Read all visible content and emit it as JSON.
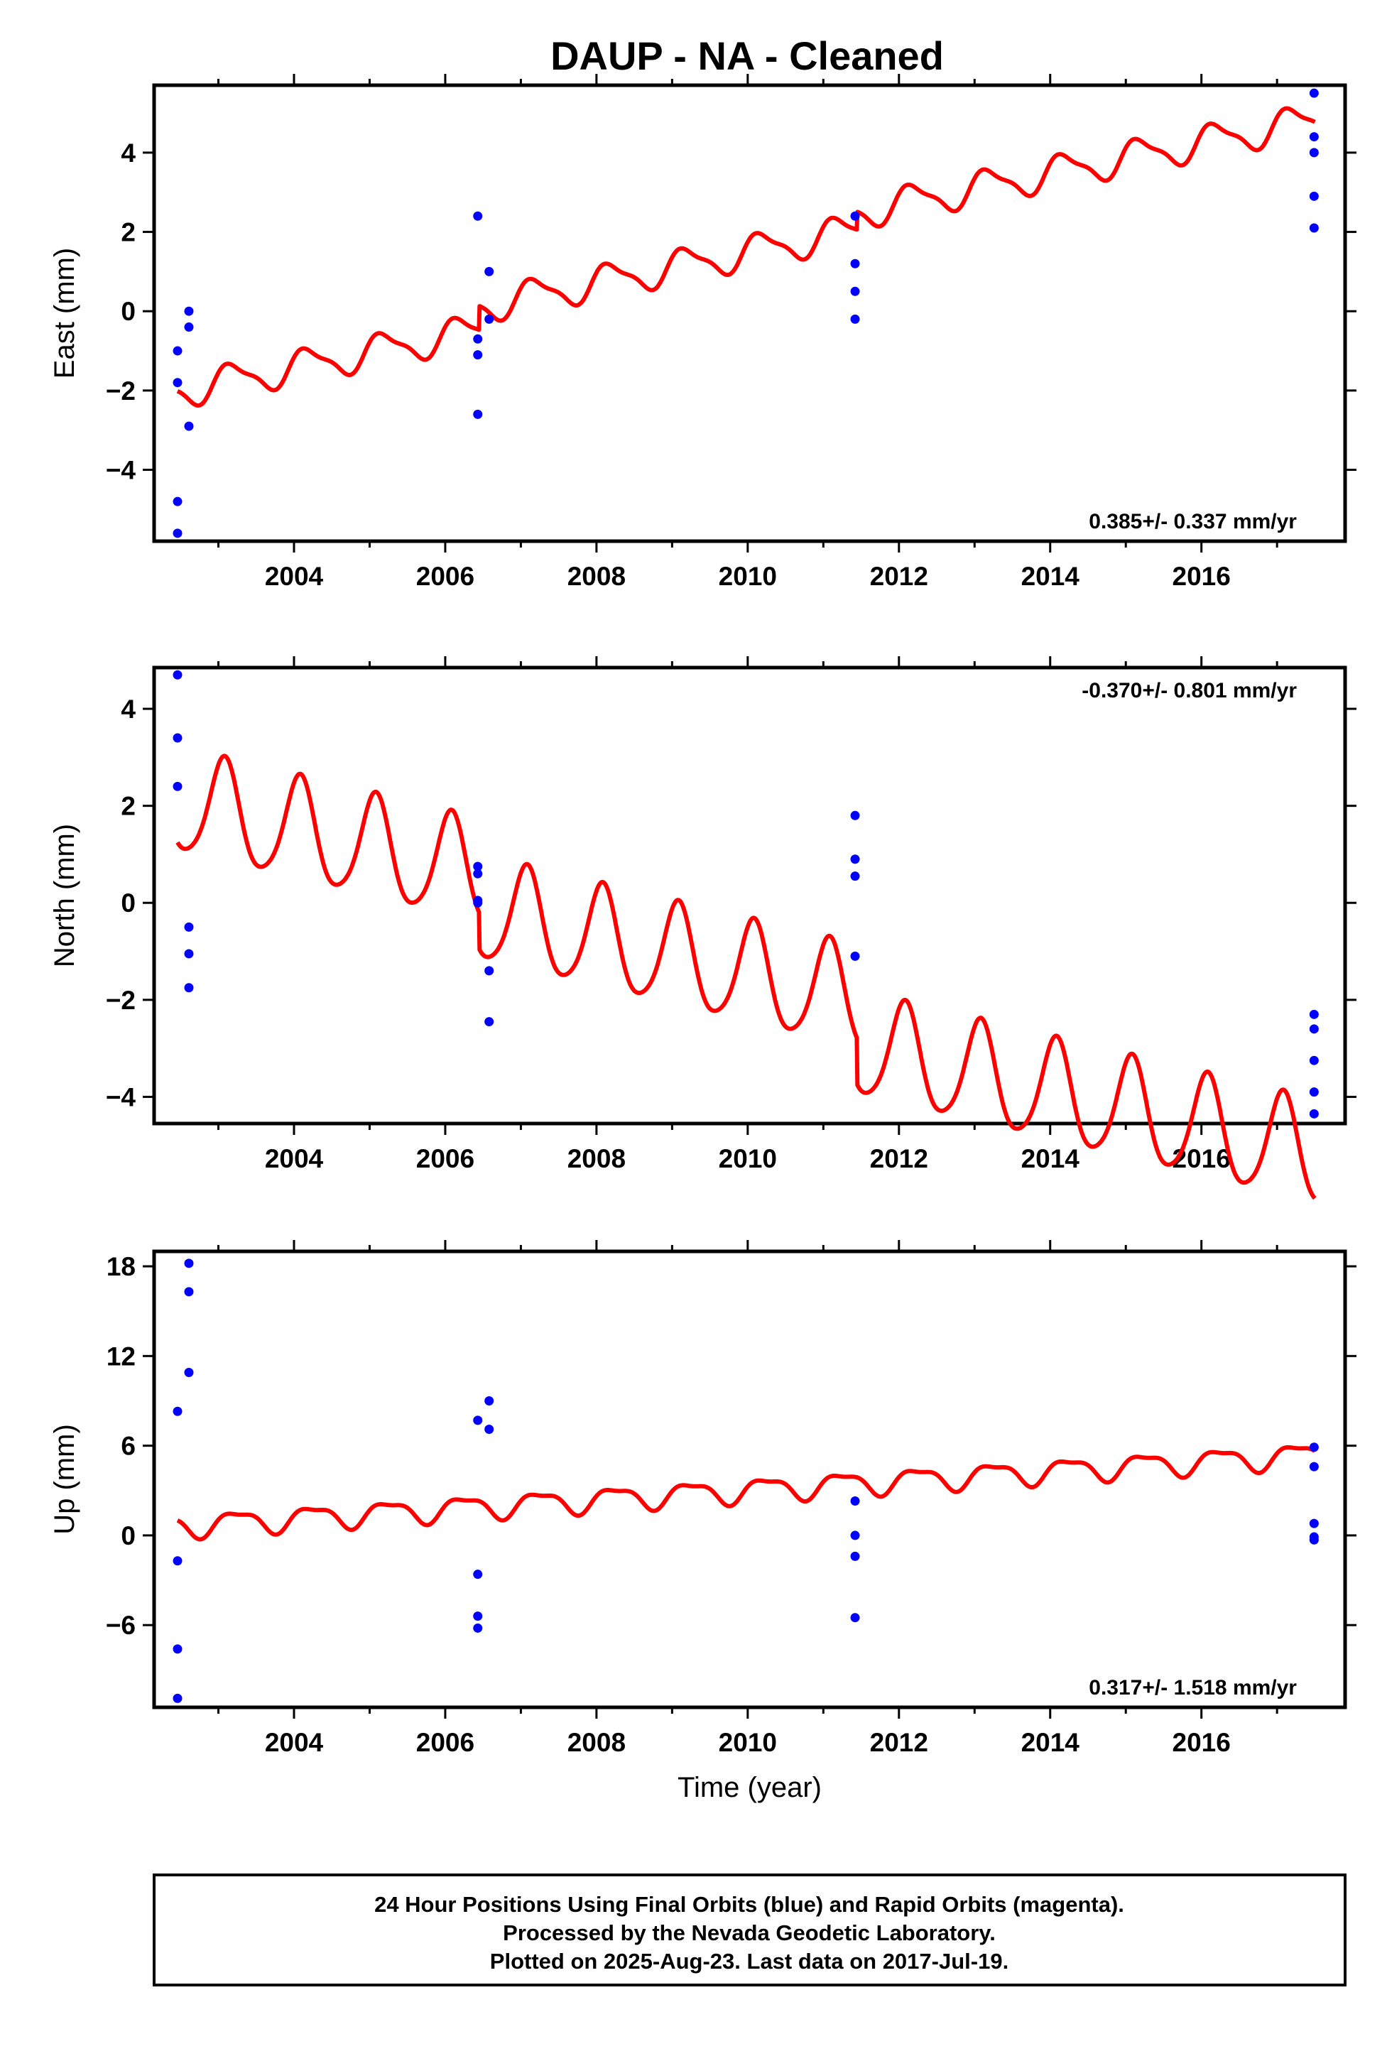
{
  "title": "DAUP  - NA - Cleaned",
  "colors": {
    "fit": "#ff0000",
    "final_orbits": "#0000ff",
    "frame": "#000000"
  },
  "chart_data": [
    {
      "type": "scatter",
      "panel": "east",
      "ylabel": "East (mm)",
      "xlabel": "",
      "rate_label": "0.385+/- 0.337 mm/yr",
      "rate_position": "bottom-right",
      "xlim": [
        2002.15,
        2017.9
      ],
      "ylim": [
        -5.8,
        5.7
      ],
      "xticks": [
        2004,
        2006,
        2008,
        2010,
        2012,
        2014,
        2016
      ],
      "xtick_labels": [
        "2004",
        "2006",
        "2008",
        "2010",
        "2012",
        "2014",
        "2016"
      ],
      "yticks": [
        -4,
        -2,
        0,
        2,
        4
      ],
      "ytick_labels": [
        "−4",
        "−2",
        "0",
        "2",
        "4"
      ],
      "points": [
        {
          "x": 2002.46,
          "y": -1.0
        },
        {
          "x": 2002.46,
          "y": -1.8
        },
        {
          "x": 2002.46,
          "y": -4.8
        },
        {
          "x": 2002.46,
          "y": -5.6
        },
        {
          "x": 2002.61,
          "y": 0.0
        },
        {
          "x": 2002.61,
          "y": -0.4
        },
        {
          "x": 2002.61,
          "y": -2.9
        },
        {
          "x": 2006.43,
          "y": 2.4
        },
        {
          "x": 2006.43,
          "y": -0.7
        },
        {
          "x": 2006.43,
          "y": -1.1
        },
        {
          "x": 2006.43,
          "y": -2.6
        },
        {
          "x": 2006.58,
          "y": 1.0
        },
        {
          "x": 2006.58,
          "y": -0.2
        },
        {
          "x": 2011.42,
          "y": 2.4
        },
        {
          "x": 2011.42,
          "y": 1.2
        },
        {
          "x": 2011.42,
          "y": 0.5
        },
        {
          "x": 2011.42,
          "y": -0.2
        },
        {
          "x": 2017.49,
          "y": 5.5
        },
        {
          "x": 2017.49,
          "y": 4.4
        },
        {
          "x": 2017.49,
          "y": 4.0
        },
        {
          "x": 2017.49,
          "y": 2.9
        },
        {
          "x": 2017.49,
          "y": 2.1
        }
      ],
      "fit": {
        "x_start": 2002.46,
        "x_end": 2017.5,
        "intercept_2002_5": -2.0,
        "rate": 0.385,
        "offsets": [
          {
            "at": 2006.45,
            "y": 0.6
          },
          {
            "at": 2011.45,
            "y": 0.45
          }
        ],
        "annual_amp": 0.4,
        "annual_phase": 0.4,
        "semiannual_amp": 0.12,
        "semiannual_phase": 1.0
      }
    },
    {
      "type": "scatter",
      "panel": "north",
      "ylabel": "North (mm)",
      "xlabel": "",
      "rate_label": "-0.370+/- 0.801 mm/yr",
      "rate_position": "top-right",
      "xlim": [
        2002.15,
        2017.9
      ],
      "ylim": [
        -4.55,
        4.85
      ],
      "xticks": [
        2004,
        2006,
        2008,
        2010,
        2012,
        2014,
        2016
      ],
      "xtick_labels": [
        "2004",
        "2006",
        "2008",
        "2010",
        "2012",
        "2014",
        "2016"
      ],
      "yticks": [
        -4,
        -2,
        0,
        2,
        4
      ],
      "ytick_labels": [
        "−4",
        "−2",
        "0",
        "2",
        "4"
      ],
      "points": [
        {
          "x": 2002.46,
          "y": 4.7
        },
        {
          "x": 2002.46,
          "y": 3.4
        },
        {
          "x": 2002.46,
          "y": 2.4
        },
        {
          "x": 2002.61,
          "y": -0.5
        },
        {
          "x": 2002.61,
          "y": -1.05
        },
        {
          "x": 2002.61,
          "y": -1.75
        },
        {
          "x": 2006.43,
          "y": 0.75
        },
        {
          "x": 2006.43,
          "y": 0.6
        },
        {
          "x": 2006.43,
          "y": 0.05
        },
        {
          "x": 2006.43,
          "y": 0.0
        },
        {
          "x": 2006.58,
          "y": -1.4
        },
        {
          "x": 2006.58,
          "y": -2.45
        },
        {
          "x": 2011.42,
          "y": 1.8
        },
        {
          "x": 2011.42,
          "y": 0.9
        },
        {
          "x": 2011.42,
          "y": 0.55
        },
        {
          "x": 2011.42,
          "y": -1.1
        },
        {
          "x": 2017.49,
          "y": -2.3
        },
        {
          "x": 2017.49,
          "y": -2.6
        },
        {
          "x": 2017.49,
          "y": -3.25
        },
        {
          "x": 2017.49,
          "y": -3.9
        },
        {
          "x": 2017.49,
          "y": -4.35
        }
      ],
      "fit": {
        "x_start": 2002.46,
        "x_end": 2017.5,
        "intercept_2002_5": 2.05,
        "rate": -0.37,
        "offsets": [
          {
            "at": 2006.45,
            "y": -0.75
          },
          {
            "at": 2011.45,
            "y": -0.95
          }
        ],
        "annual_amp": 1.05,
        "annual_phase": 1.1,
        "semiannual_amp": 0.15,
        "semiannual_phase": 0.3
      }
    },
    {
      "type": "scatter",
      "panel": "up",
      "ylabel": "Up (mm)",
      "xlabel": "Time (year)",
      "rate_label": "0.317+/- 1.518 mm/yr",
      "rate_position": "bottom-right",
      "xlim": [
        2002.15,
        2017.9
      ],
      "ylim": [
        -11.5,
        19.0
      ],
      "xticks": [
        2004,
        2006,
        2008,
        2010,
        2012,
        2014,
        2016
      ],
      "xtick_labels": [
        "2004",
        "2006",
        "2008",
        "2010",
        "2012",
        "2014",
        "2016"
      ],
      "yticks": [
        -6,
        0,
        6,
        12,
        18
      ],
      "ytick_labels": [
        "−6",
        "0",
        "6",
        "12",
        "18"
      ],
      "points": [
        {
          "x": 2002.46,
          "y": 8.3
        },
        {
          "x": 2002.46,
          "y": -1.7
        },
        {
          "x": 2002.46,
          "y": -7.6
        },
        {
          "x": 2002.46,
          "y": -10.9
        },
        {
          "x": 2002.61,
          "y": 18.2
        },
        {
          "x": 2002.61,
          "y": 16.3
        },
        {
          "x": 2002.61,
          "y": 10.9
        },
        {
          "x": 2006.43,
          "y": 7.7
        },
        {
          "x": 2006.43,
          "y": -2.6
        },
        {
          "x": 2006.43,
          "y": -5.4
        },
        {
          "x": 2006.43,
          "y": -6.2
        },
        {
          "x": 2006.58,
          "y": 9.0
        },
        {
          "x": 2006.58,
          "y": 7.1
        },
        {
          "x": 2011.42,
          "y": 2.3
        },
        {
          "x": 2011.42,
          "y": 0.0
        },
        {
          "x": 2011.42,
          "y": -1.4
        },
        {
          "x": 2011.42,
          "y": -5.5
        },
        {
          "x": 2017.49,
          "y": 5.9
        },
        {
          "x": 2017.49,
          "y": 4.6
        },
        {
          "x": 2017.49,
          "y": 0.8
        },
        {
          "x": 2017.49,
          "y": -0.1
        },
        {
          "x": 2017.49,
          "y": -0.3
        }
      ],
      "fit": {
        "x_start": 2002.46,
        "x_end": 2017.5,
        "intercept_2002_5": 0.65,
        "rate": 0.317,
        "offsets": [],
        "annual_amp": 0.75,
        "annual_phase": 0.0,
        "semiannual_amp": 0.25,
        "semiannual_phase": 1.3
      }
    }
  ],
  "footer": {
    "line1": "24 Hour Positions Using Final Orbits (blue) and Rapid Orbits (magenta).",
    "line2": "Processed by the Nevada Geodetic Laboratory.",
    "line3": "Plotted on 2025-Aug-23. Last data on 2017-Jul-19."
  }
}
